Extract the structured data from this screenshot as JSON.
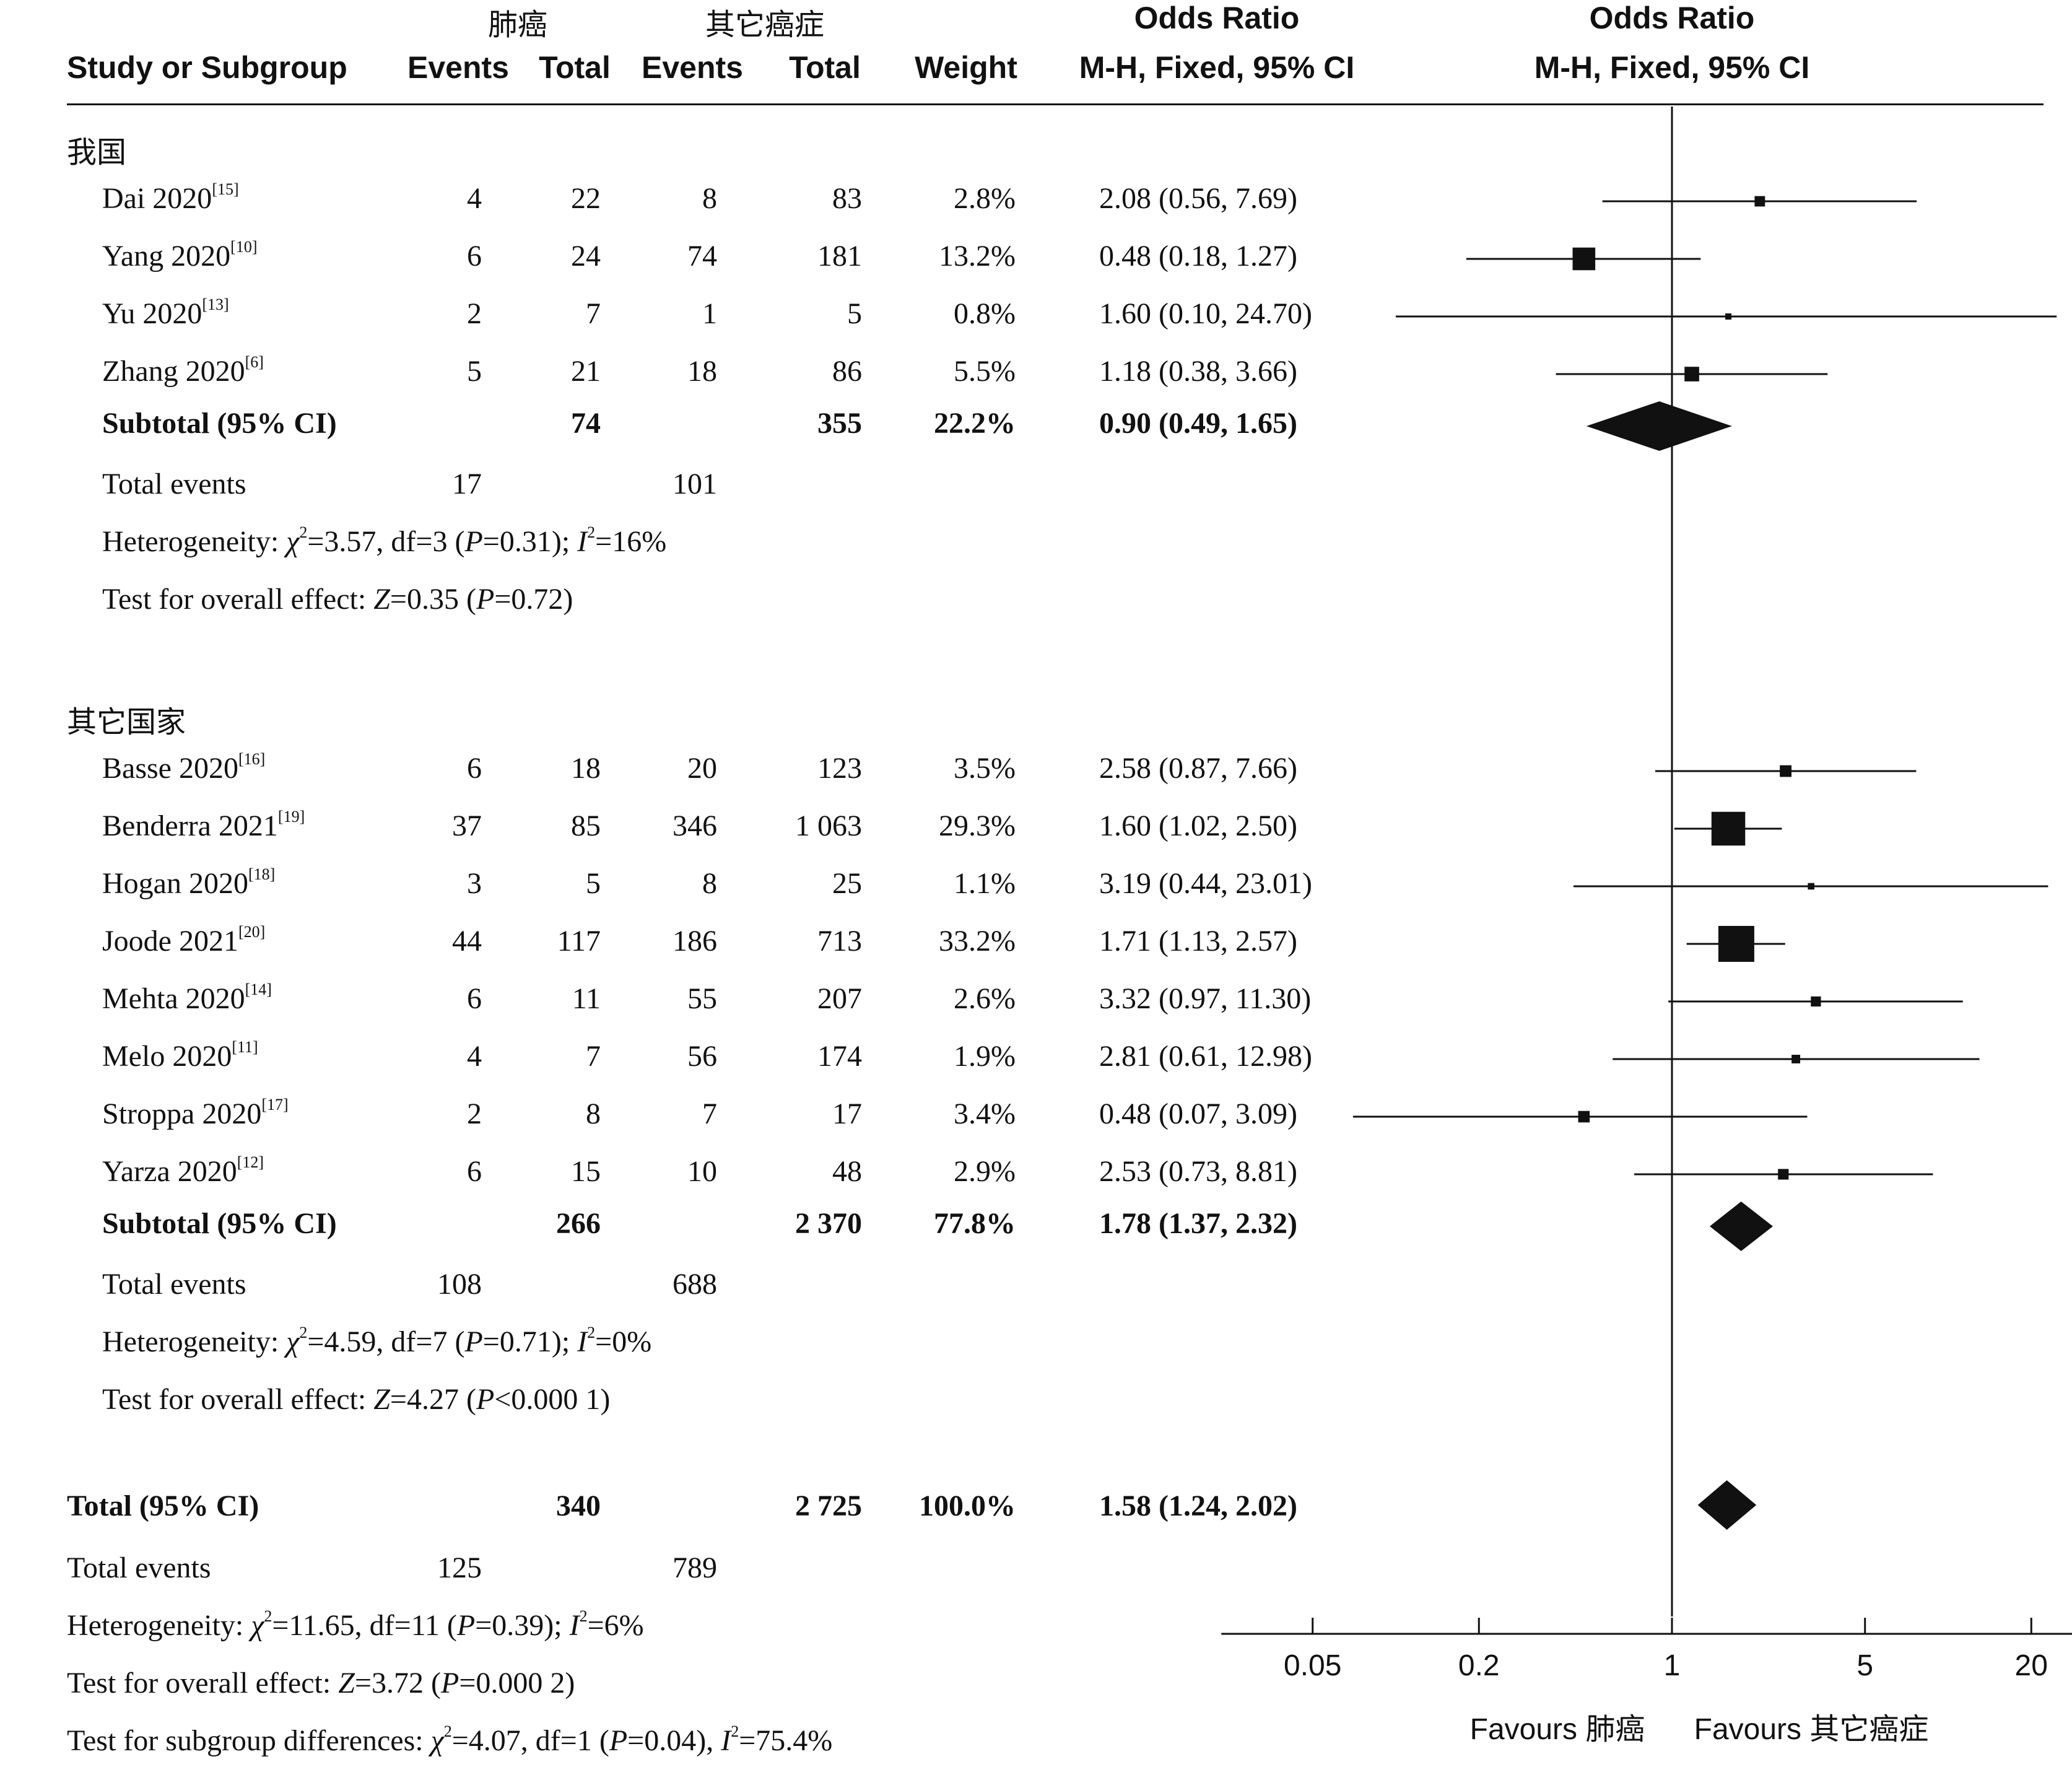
{
  "header": {
    "group1": "肺癌",
    "group2": "其它癌症",
    "or_title": "Odds Ratio",
    "or_method": "M-H, Fixed, 95% CI",
    "col_study": "Study or Subgroup",
    "col_events1": "Events",
    "col_total1": "Total",
    "col_events2": "Events",
    "col_total2": "Total",
    "col_weight": "Weight"
  },
  "subgroups": [
    {
      "name": "我国",
      "studies": [
        {
          "study": "Dai 2020",
          "ref": "[15]",
          "e1": "4",
          "t1": "22",
          "e2": "8",
          "t2": "83",
          "weight": "2.8%",
          "ci": "2.08 (0.56, 7.69)"
        },
        {
          "study": "Yang 2020",
          "ref": "[10]",
          "e1": "6",
          "t1": "24",
          "e2": "74",
          "t2": "181",
          "weight": "13.2%",
          "ci": "0.48 (0.18, 1.27)"
        },
        {
          "study": "Yu 2020",
          "ref": "[13]",
          "e1": "2",
          "t1": "7",
          "e2": "1",
          "t2": "5",
          "weight": "0.8%",
          "ci": "1.60 (0.10, 24.70)"
        },
        {
          "study": "Zhang 2020",
          "ref": "[6]",
          "e1": "5",
          "t1": "21",
          "e2": "18",
          "t2": "86",
          "weight": "5.5%",
          "ci": "1.18 (0.38, 3.66)"
        }
      ],
      "subtotal": {
        "label": "Subtotal (95% CI)",
        "t1": "74",
        "t2": "355",
        "weight": "22.2%",
        "ci": "0.90 (0.49, 1.65)"
      },
      "total_events": {
        "label": "Total events",
        "e1": "17",
        "e2": "101"
      },
      "heterogeneity": {
        "prefix": "Heterogeneity: ",
        "chi_sym": "χ",
        "chi_val": "=3.57, df=3 (",
        "p_sym": "P",
        "p_val": "=0.31); ",
        "i_sym": "I",
        "i_val": "=16%"
      },
      "overall": {
        "prefix": "Test for overall effect: ",
        "z_sym": "Z",
        "z_val": "=0.35 (",
        "p_sym": "P",
        "p_val": "=0.72)"
      }
    },
    {
      "name": "其它国家",
      "studies": [
        {
          "study": "Basse 2020",
          "ref": "[16]",
          "e1": "6",
          "t1": "18",
          "e2": "20",
          "t2": "123",
          "weight": "3.5%",
          "ci": "2.58 (0.87, 7.66)"
        },
        {
          "study": "Benderra 2021",
          "ref": "[19]",
          "e1": "37",
          "t1": "85",
          "e2": "346",
          "t2": "1 063",
          "weight": "29.3%",
          "ci": "1.60 (1.02, 2.50)"
        },
        {
          "study": "Hogan 2020",
          "ref": "[18]",
          "e1": "3",
          "t1": "5",
          "e2": "8",
          "t2": "25",
          "weight": "1.1%",
          "ci": "3.19 (0.44, 23.01)"
        },
        {
          "study": "Joode 2021",
          "ref": "[20]",
          "e1": "44",
          "t1": "117",
          "e2": "186",
          "t2": "713",
          "weight": "33.2%",
          "ci": "1.71 (1.13, 2.57)"
        },
        {
          "study": "Mehta 2020",
          "ref": "[14]",
          "e1": "6",
          "t1": "11",
          "e2": "55",
          "t2": "207",
          "weight": "2.6%",
          "ci": "3.32 (0.97, 11.30)"
        },
        {
          "study": "Melo 2020",
          "ref": "[11]",
          "e1": "4",
          "t1": "7",
          "e2": "56",
          "t2": "174",
          "weight": "1.9%",
          "ci": "2.81 (0.61, 12.98)"
        },
        {
          "study": "Stroppa 2020",
          "ref": "[17]",
          "e1": "2",
          "t1": "8",
          "e2": "7",
          "t2": "17",
          "weight": "3.4%",
          "ci": "0.48 (0.07, 3.09)"
        },
        {
          "study": "Yarza 2020",
          "ref": "[12]",
          "e1": "6",
          "t1": "15",
          "e2": "10",
          "t2": "48",
          "weight": "2.9%",
          "ci": "2.53 (0.73, 8.81)"
        }
      ],
      "subtotal": {
        "label": "Subtotal (95% CI)",
        "t1": "266",
        "t2": "2 370",
        "weight": "77.8%",
        "ci": "1.78 (1.37, 2.32)"
      },
      "total_events": {
        "label": "Total events",
        "e1": "108",
        "e2": "688"
      },
      "heterogeneity": {
        "prefix": "Heterogeneity: ",
        "chi_sym": "χ",
        "chi_val": "=4.59, df=7 (",
        "p_sym": "P",
        "p_val": "=0.71); ",
        "i_sym": "I",
        "i_val": "=0%"
      },
      "overall": {
        "prefix": "Test for overall effect: ",
        "z_sym": "Z",
        "z_val": "=4.27 (",
        "p_sym": "P",
        "p_val": "<0.000 1)"
      }
    }
  ],
  "total": {
    "label": "Total (95% CI)",
    "t1": "340",
    "t2": "2 725",
    "weight": "100.0%",
    "ci": "1.58 (1.24, 2.02)",
    "total_events": {
      "label": "Total events",
      "e1": "125",
      "e2": "789"
    },
    "heterogeneity": {
      "prefix": "Heterogeneity: ",
      "chi_sym": "χ",
      "chi_val": "=11.65, df=11 (",
      "p_sym": "P",
      "p_val": "=0.39); ",
      "i_sym": "I",
      "i_val": "=6%"
    },
    "overall": {
      "prefix": "Test for overall effect: ",
      "z_sym": "Z",
      "z_val": "=3.72 (",
      "p_sym": "P",
      "p_val": "=0.000 2)"
    },
    "subgroup_diff": {
      "prefix": "Test for subgroup differences: ",
      "chi_sym": "χ",
      "chi_val": "=4.07, df=1 (",
      "p_sym": "P",
      "p_val": "=0.04), ",
      "i_sym": "I",
      "i_val": "=75.4%"
    }
  },
  "axis": {
    "ticks": [
      {
        "value": 0.05,
        "label": "0.05"
      },
      {
        "value": 0.2,
        "label": "0.2"
      },
      {
        "value": 1,
        "label": "1"
      },
      {
        "value": 5,
        "label": "5"
      },
      {
        "value": 20,
        "label": "20"
      }
    ],
    "favours_left": "Favours 肺癌",
    "favours_right": "Favours 其它癌症"
  },
  "chart_data": {
    "type": "forest",
    "x_scale": "log",
    "xlim": [
      0.02,
      50
    ],
    "reference_line": 1,
    "series": [
      {
        "name": "Dai 2020",
        "or": 2.08,
        "lower": 0.56,
        "upper": 7.69,
        "weight": 2.8
      },
      {
        "name": "Yang 2020",
        "or": 0.48,
        "lower": 0.18,
        "upper": 1.27,
        "weight": 13.2
      },
      {
        "name": "Yu 2020",
        "or": 1.6,
        "lower": 0.1,
        "upper": 24.7,
        "weight": 0.8
      },
      {
        "name": "Zhang 2020",
        "or": 1.18,
        "lower": 0.38,
        "upper": 3.66,
        "weight": 5.5
      },
      {
        "name": "Subtotal (95% CI)",
        "or": 0.9,
        "lower": 0.49,
        "upper": 1.65,
        "diamond": true
      },
      {
        "name": "Basse 2020",
        "or": 2.58,
        "lower": 0.87,
        "upper": 7.66,
        "weight": 3.5
      },
      {
        "name": "Benderra 2021",
        "or": 1.6,
        "lower": 1.02,
        "upper": 2.5,
        "weight": 29.3
      },
      {
        "name": "Hogan 2020",
        "or": 3.19,
        "lower": 0.44,
        "upper": 23.01,
        "weight": 1.1
      },
      {
        "name": "Joode 2021",
        "or": 1.71,
        "lower": 1.13,
        "upper": 2.57,
        "weight": 33.2
      },
      {
        "name": "Mehta 2020",
        "or": 3.32,
        "lower": 0.97,
        "upper": 11.3,
        "weight": 2.6
      },
      {
        "name": "Melo 2020",
        "or": 2.81,
        "lower": 0.61,
        "upper": 12.98,
        "weight": 1.9
      },
      {
        "name": "Stroppa 2020",
        "or": 0.48,
        "lower": 0.07,
        "upper": 3.09,
        "weight": 3.4
      },
      {
        "name": "Yarza 2020",
        "or": 2.53,
        "lower": 0.73,
        "upper": 8.81,
        "weight": 2.9
      },
      {
        "name": "Subtotal (95% CI)",
        "or": 1.78,
        "lower": 1.37,
        "upper": 2.32,
        "diamond": true
      },
      {
        "name": "Total (95% CI)",
        "or": 1.58,
        "lower": 1.24,
        "upper": 2.02,
        "diamond": true
      }
    ]
  }
}
